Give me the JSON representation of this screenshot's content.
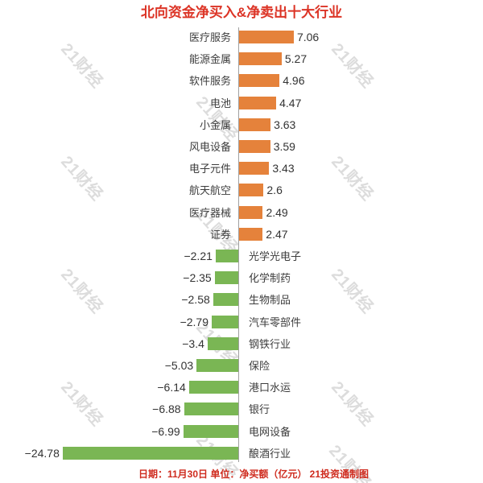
{
  "title": "北向资金净买入&净卖出十大行业",
  "caption": "日期：11月30日 单位：净买额（亿元） 21投资通制图",
  "watermark": {
    "text": "21财经"
  },
  "colors": {
    "positive_bar": "#e5823b",
    "negative_bar": "#7ab654",
    "title_red": "#dc3426",
    "caption_red": "#cf2b1e",
    "axis_gray": "#a0a0a0",
    "value_text": "#333333",
    "category_text": "#3d3d3d"
  },
  "chart_data": {
    "type": "bar",
    "orientation": "horizontal",
    "title": "北向资金净买入&净卖出十大行业",
    "date_note": "11月30日",
    "unit_note": "净买额（亿元）",
    "source_note": "21投资通制图",
    "positive_meaning": "净买入",
    "negative_meaning": "净卖出",
    "xlim": [
      -25,
      8
    ],
    "series": [
      {
        "category": "医疗服务",
        "value": 7.06,
        "display": "7.06"
      },
      {
        "category": "能源金属",
        "value": 5.27,
        "display": "5.27"
      },
      {
        "category": "软件服务",
        "value": 4.96,
        "display": "4.96"
      },
      {
        "category": "电池",
        "value": 4.47,
        "display": "4.47"
      },
      {
        "category": "小金属",
        "value": 3.63,
        "display": "3.63"
      },
      {
        "category": "风电设备",
        "value": 3.59,
        "display": "3.59"
      },
      {
        "category": "电子元件",
        "value": 3.43,
        "display": "3.43"
      },
      {
        "category": "航天航空",
        "value": 2.6,
        "display": "2.6"
      },
      {
        "category": "医疗器械",
        "value": 2.49,
        "display": "2.49"
      },
      {
        "category": "证券",
        "value": 2.47,
        "display": "2.47"
      },
      {
        "category": "光学光电子",
        "value": -2.21,
        "display": "−2.21"
      },
      {
        "category": "化学制药",
        "value": -2.35,
        "display": "−2.35"
      },
      {
        "category": "生物制品",
        "value": -2.58,
        "display": "−2.58"
      },
      {
        "category": "汽车零部件",
        "value": -2.79,
        "display": "−2.79"
      },
      {
        "category": "钢铁行业",
        "value": -3.4,
        "display": "−3.4"
      },
      {
        "category": "保险",
        "value": -5.03,
        "display": "−5.03"
      },
      {
        "category": "港口水运",
        "value": -6.14,
        "display": "−6.14"
      },
      {
        "category": "银行",
        "value": -6.88,
        "display": "−6.88"
      },
      {
        "category": "电网设备",
        "value": -6.99,
        "display": "−6.99"
      },
      {
        "category": "酿酒行业",
        "value": -24.78,
        "display": "−24.78"
      }
    ]
  }
}
